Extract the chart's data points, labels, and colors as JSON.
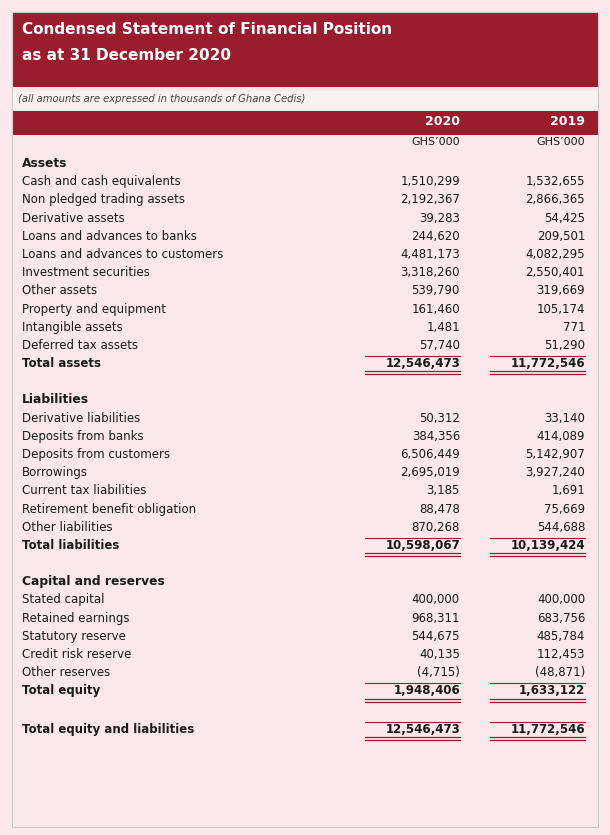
{
  "title_line1": "Condensed Statement of Financial Position",
  "title_line2": "as at 31 December 2020",
  "subtitle": "(all amounts are expressed in thousands of Ghana Cedis)",
  "col_header_year1": "2020",
  "col_header_year2": "2019",
  "col_subheader1": "GHS’000",
  "col_subheader2": "GHS’000",
  "header_bg": "#9B1C2E",
  "header_text_color": "#FFFFFF",
  "title_bg": "#9B1C2E",
  "body_bg": "#FAE8EA",
  "text_color": "#1a1a1a",
  "underline_color": "#9B1C2E",
  "sections": [
    {
      "section_header": "Assets",
      "rows": [
        {
          "label": "Cash and cash equivalents",
          "v2020": "1,510,299",
          "v2019": "1,532,655",
          "bold": false
        },
        {
          "label": "Non pledged trading assets",
          "v2020": "2,192,367",
          "v2019": "2,866,365",
          "bold": false
        },
        {
          "label": "Derivative assets",
          "v2020": "39,283",
          "v2019": "54,425",
          "bold": false
        },
        {
          "label": "Loans and advances to banks",
          "v2020": "244,620",
          "v2019": "209,501",
          "bold": false
        },
        {
          "label": "Loans and advances to customers",
          "v2020": "4,481,173",
          "v2019": "4,082,295",
          "bold": false
        },
        {
          "label": "Investment securities",
          "v2020": "3,318,260",
          "v2019": "2,550,401",
          "bold": false
        },
        {
          "label": "Other assets",
          "v2020": "539,790",
          "v2019": "319,669",
          "bold": false
        },
        {
          "label": "Property and equipment",
          "v2020": "161,460",
          "v2019": "105,174",
          "bold": false
        },
        {
          "label": "Intangible assets",
          "v2020": "1,481",
          "v2019": "771",
          "bold": false
        },
        {
          "label": "Deferred tax assets",
          "v2020": "57,740",
          "v2019": "51,290",
          "bold": false
        },
        {
          "label": "Total assets",
          "v2020": "12,546,473",
          "v2019": "11,772,546",
          "bold": true,
          "double_underline": true
        }
      ]
    },
    {
      "section_header": "Liabilities",
      "rows": [
        {
          "label": "Derivative liabilities",
          "v2020": "50,312",
          "v2019": "33,140",
          "bold": false
        },
        {
          "label": "Deposits from banks",
          "v2020": "384,356",
          "v2019": "414,089",
          "bold": false
        },
        {
          "label": "Deposits from customers",
          "v2020": "6,506,449",
          "v2019": "5,142,907",
          "bold": false
        },
        {
          "label": "Borrowings",
          "v2020": "2,695,019",
          "v2019": "3,927,240",
          "bold": false
        },
        {
          "label": "Current tax liabilities",
          "v2020": "3,185",
          "v2019": "1,691",
          "bold": false
        },
        {
          "label": "Retirement benefit obligation",
          "v2020": "88,478",
          "v2019": "75,669",
          "bold": false
        },
        {
          "label": "Other liabilities",
          "v2020": "870,268",
          "v2019": "544,688",
          "bold": false
        },
        {
          "label": "Total liabilities",
          "v2020": "10,598,067",
          "v2019": "10,139,424",
          "bold": true,
          "double_underline": true
        }
      ]
    },
    {
      "section_header": "Capital and reserves",
      "rows": [
        {
          "label": "Stated capital",
          "v2020": "400,000",
          "v2019": "400,000",
          "bold": false
        },
        {
          "label": "Retained earnings",
          "v2020": "968,311",
          "v2019": "683,756",
          "bold": false
        },
        {
          "label": "Statutory reserve",
          "v2020": "544,675",
          "v2019": "485,784",
          "bold": false
        },
        {
          "label": "Credit risk reserve",
          "v2020": "40,135",
          "v2019": "112,453",
          "bold": false
        },
        {
          "label": "Other reserves",
          "v2020": "(4,715)",
          "v2019": "(48,871)",
          "bold": false
        },
        {
          "label": "Total equity",
          "v2020": "1,948,406",
          "v2019": "1,633,122",
          "bold": true,
          "double_underline": true
        }
      ]
    }
  ],
  "final_row": {
    "label": "Total equity and liabilities",
    "v2020": "12,546,473",
    "v2019": "11,772,546",
    "bold": true,
    "double_underline": true
  }
}
